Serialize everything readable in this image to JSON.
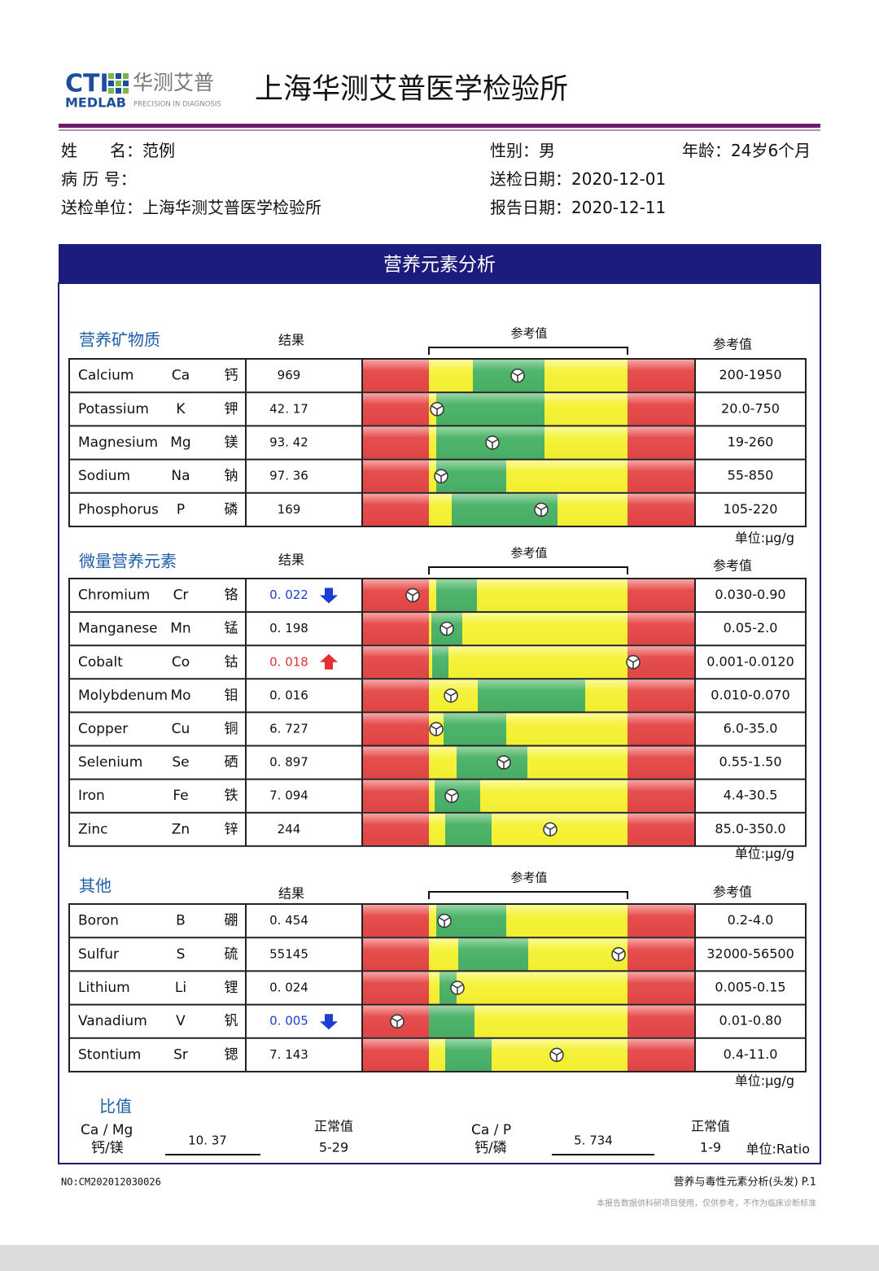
{
  "header": {
    "logo_cti": "CTI",
    "logo_cn": "华测艾普",
    "logo_medlab": "MEDLAB",
    "logo_tagline": "PRECISION IN DIAGNOSIS",
    "title": "上海华测艾普医学检验所"
  },
  "patient": {
    "name": {
      "label": "姓　　名：",
      "value": "范例"
    },
    "record": {
      "label": "病 历 号：",
      "value": ""
    },
    "unit": {
      "label": "送检单位：",
      "value": "上海华测艾普医学检验所"
    },
    "sex": {
      "label": "性别：",
      "value": "男"
    },
    "age": {
      "label": "年龄：",
      "value": "24岁6个月"
    },
    "sent": {
      "label": "送检日期：",
      "value": "2020-12-01"
    },
    "report": {
      "label": "报告日期：",
      "value": "2020-12-11"
    }
  },
  "banner": "营养元素分析",
  "sections": [
    {
      "title": "营养矿物质",
      "result_header": "结果",
      "bracket_label": "参考值",
      "range_header": "参考值",
      "unit": "单位:μg/g",
      "rows": [
        {
          "name": "Calcium",
          "symbol": "Ca",
          "cn": "钙",
          "result": "969",
          "range": "200-1950"
        },
        {
          "name": "Potassium",
          "symbol": "K",
          "cn": "钾",
          "result": "42. 17",
          "range": "20.0-750"
        },
        {
          "name": "Magnesium",
          "symbol": "Mg",
          "cn": "镁",
          "result": "93. 42",
          "range": "19-260"
        },
        {
          "name": "Sodium",
          "symbol": "Na",
          "cn": "钠",
          "result": "97. 36",
          "range": "55-850"
        },
        {
          "name": "Phosphorus",
          "symbol": "P",
          "cn": "磷",
          "result": "169",
          "range": "105-220"
        }
      ]
    },
    {
      "title": "微量营养元素",
      "result_header": "结果",
      "bracket_label": "参考值",
      "range_header": "参考值",
      "unit": "单位:μg/g",
      "rows": [
        {
          "name": "Chromium",
          "symbol": "Cr",
          "cn": "铬",
          "result": "0. 022",
          "range": "0.030-0.90"
        },
        {
          "name": "Manganese",
          "symbol": "Mn",
          "cn": "锰",
          "result": "0. 198",
          "range": "0.05-2.0"
        },
        {
          "name": "Cobalt",
          "symbol": "Co",
          "cn": "钴",
          "result": "0. 018",
          "range": "0.001-0.0120"
        },
        {
          "name": "Molybdenum",
          "symbol": "Mo",
          "cn": "钼",
          "result": "0. 016",
          "range": "0.010-0.070"
        },
        {
          "name": "Copper",
          "symbol": "Cu",
          "cn": "铜",
          "result": "6. 727",
          "range": "6.0-35.0"
        },
        {
          "name": "Selenium",
          "symbol": "Se",
          "cn": "硒",
          "result": "0. 897",
          "range": "0.55-1.50"
        },
        {
          "name": "Iron",
          "symbol": "Fe",
          "cn": "铁",
          "result": "7. 094",
          "range": "4.4-30.5"
        },
        {
          "name": "Zinc",
          "symbol": "Zn",
          "cn": "锌",
          "result": "244",
          "range": "85.0-350.0"
        }
      ]
    },
    {
      "title": "其他",
      "result_header": "结果",
      "bracket_label": "参考值",
      "range_header": "参考值",
      "unit": "单位:μg/g",
      "rows": [
        {
          "name": "Boron",
          "symbol": "B",
          "cn": "硼",
          "result": "0. 454",
          "range": "0.2-4.0"
        },
        {
          "name": "Sulfur",
          "symbol": "S",
          "cn": "硫",
          "result": "55145",
          "range": "32000-56500"
        },
        {
          "name": "Lithium",
          "symbol": "Li",
          "cn": "锂",
          "result": "0. 024",
          "range": "0.005-0.15"
        },
        {
          "name": "Vanadium",
          "symbol": "V",
          "cn": "钒",
          "result": "0. 005",
          "range": "0.01-0.80"
        },
        {
          "name": "Stontium",
          "symbol": "Sr",
          "cn": "锶",
          "result": "7. 143",
          "range": "0.4-11.0"
        }
      ]
    }
  ],
  "ratio": {
    "title": "比值",
    "items": [
      {
        "label_en": "Ca / Mg",
        "label_cn": "钙/镁",
        "value": "10. 37",
        "normal_label": "正常值",
        "normal": "5-29"
      },
      {
        "label_en": "Ca / P",
        "label_cn": "钙/磷",
        "value": "5. 734",
        "normal_label": "正常值",
        "normal": "1-9"
      }
    ],
    "unit": "单位:Ratio"
  },
  "footer": {
    "report_no": "NO:CM202012030026",
    "page_label": "营养与毒性元素分析(头发) P.1",
    "disclaimer": "本报告数据供科研项目使用，仅供参考，不作为临床诊断标准"
  }
}
